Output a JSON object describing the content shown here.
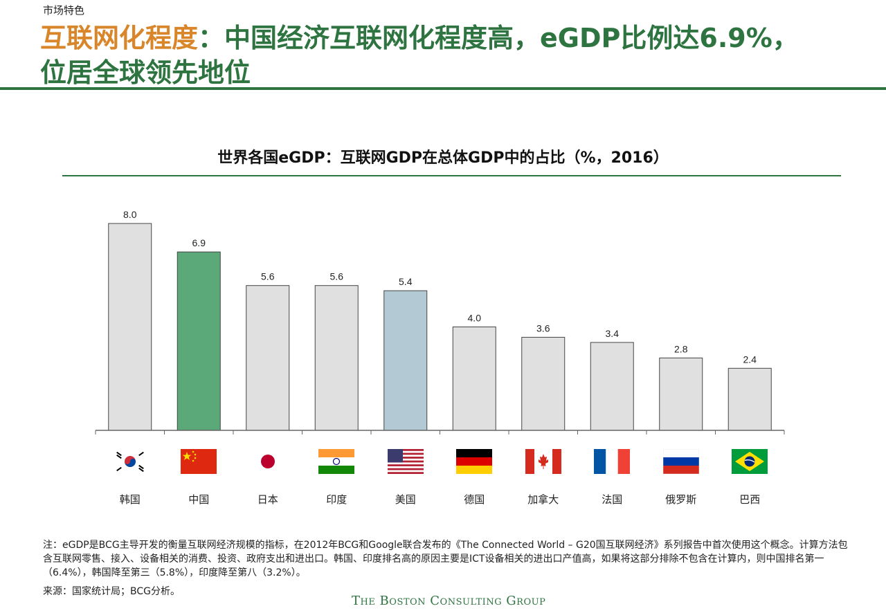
{
  "header": {
    "section": "市场特色",
    "title_highlight": "互联网化程度",
    "title_rest": "：中国经济互联网化程度高，eGDP比例达6.9%，",
    "title_line2": "位居全球领先地位"
  },
  "chart_data": {
    "type": "bar",
    "title": "世界各国eGDP：互联网GDP在总体GDP中的占比（%，2016）",
    "categories": [
      "韩国",
      "中国",
      "日本",
      "印度",
      "美国",
      "德国",
      "加拿大",
      "法国",
      "俄罗斯",
      "巴西"
    ],
    "values": [
      8.0,
      6.9,
      5.6,
      5.6,
      5.4,
      4.0,
      3.6,
      3.4,
      2.8,
      2.4
    ],
    "value_labels": [
      "8.0",
      "6.9",
      "5.6",
      "5.6",
      "5.4",
      "4.0",
      "3.6",
      "3.4",
      "2.8",
      "2.4"
    ],
    "ylim": [
      0,
      8.0
    ],
    "grid": false,
    "bar_colors": [
      "#e0e0e0",
      "#5ba879",
      "#e0e0e0",
      "#e0e0e0",
      "#b3c9d3",
      "#e0e0e0",
      "#e0e0e0",
      "#e0e0e0",
      "#e0e0e0",
      "#e0e0e0"
    ],
    "flags": [
      "south-korea-flag",
      "china-flag",
      "japan-flag",
      "india-flag",
      "usa-flag",
      "germany-flag",
      "canada-flag",
      "france-flag",
      "russia-flag",
      "brazil-flag"
    ]
  },
  "footer": {
    "note": "注：eGDP是BCG主导开发的衡量互联网经济规模的指标，在2012年BCG和Google联合发布的《The Connected World – G20国互联网经济》系列报告中首次使用这个概念。计算方法包含互联网零售、接入、设备相关的消费、投资、政府支出和进出口。韩国、印度排名高的原因主要是ICT设备相关的进出口产值高，如果将这部分排除不包含在计算内，则中国排名第一（6.4%），韩国降至第三（5.8%），印度降至第八（3.2%）。",
    "source": "来源：国家统计局；BCG分析。",
    "brand": "The Boston Consulting Group"
  }
}
